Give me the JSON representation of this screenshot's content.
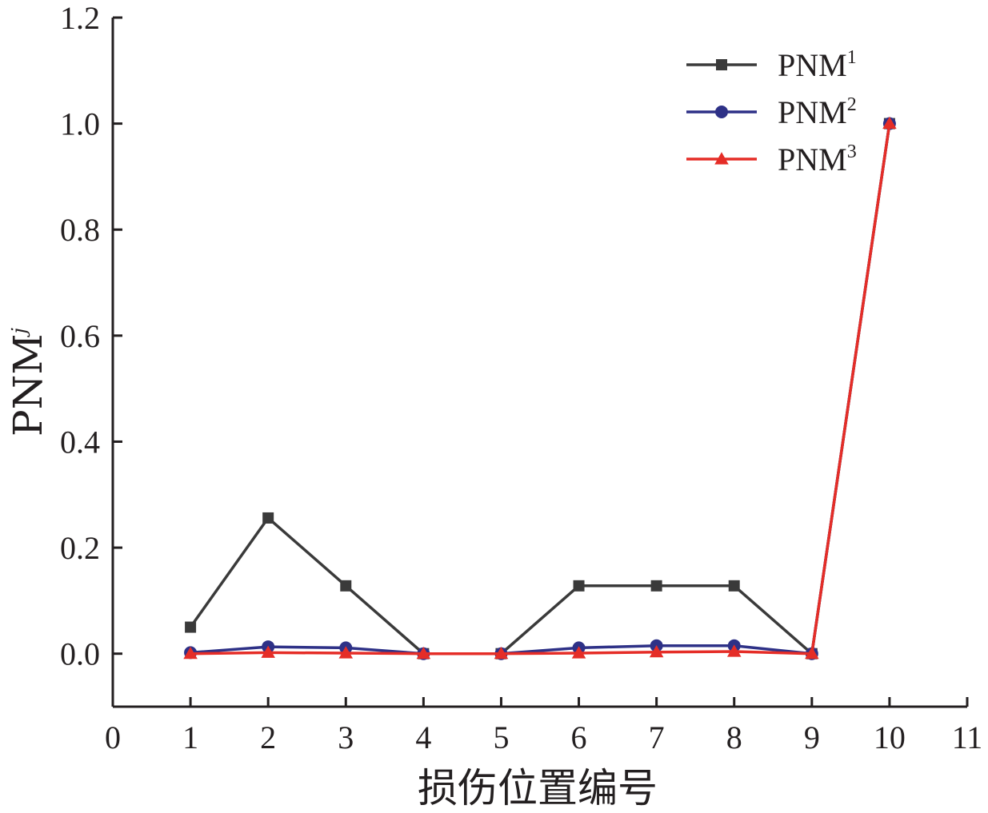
{
  "chart_data": {
    "type": "line",
    "xlabel": "损伤位置编号",
    "ylabel": {
      "base": "PNM",
      "superscript": "j"
    },
    "xlim": [
      0,
      11
    ],
    "ylim": [
      -0.1,
      1.2
    ],
    "x_ticks": [
      "0",
      "1",
      "2",
      "3",
      "4",
      "5",
      "6",
      "7",
      "8",
      "9",
      "10",
      "11"
    ],
    "y_ticks": [
      "0.0",
      "0.2",
      "0.4",
      "0.6",
      "0.8",
      "1.0",
      "1.2"
    ],
    "grid": false,
    "legend_position": "top-right",
    "x": [
      1,
      2,
      3,
      4,
      5,
      6,
      7,
      8,
      9,
      10
    ],
    "series": [
      {
        "name": "PNM",
        "superscript": "1",
        "marker": "square",
        "color": "#3a3a3a",
        "values": [
          0.05,
          0.256,
          0.128,
          0.0,
          0.0,
          0.128,
          0.128,
          0.128,
          0.0,
          1.0
        ]
      },
      {
        "name": "PNM",
        "superscript": "2",
        "marker": "circle",
        "color": "#2e3187",
        "values": [
          0.002,
          0.013,
          0.011,
          0.0,
          0.0,
          0.011,
          0.015,
          0.015,
          0.0,
          1.0
        ]
      },
      {
        "name": "PNM",
        "superscript": "3",
        "marker": "triangle",
        "color": "#e52d27",
        "values": [
          0.0,
          0.002,
          0.001,
          0.0,
          0.0,
          0.001,
          0.003,
          0.004,
          0.0,
          1.0
        ]
      }
    ]
  }
}
